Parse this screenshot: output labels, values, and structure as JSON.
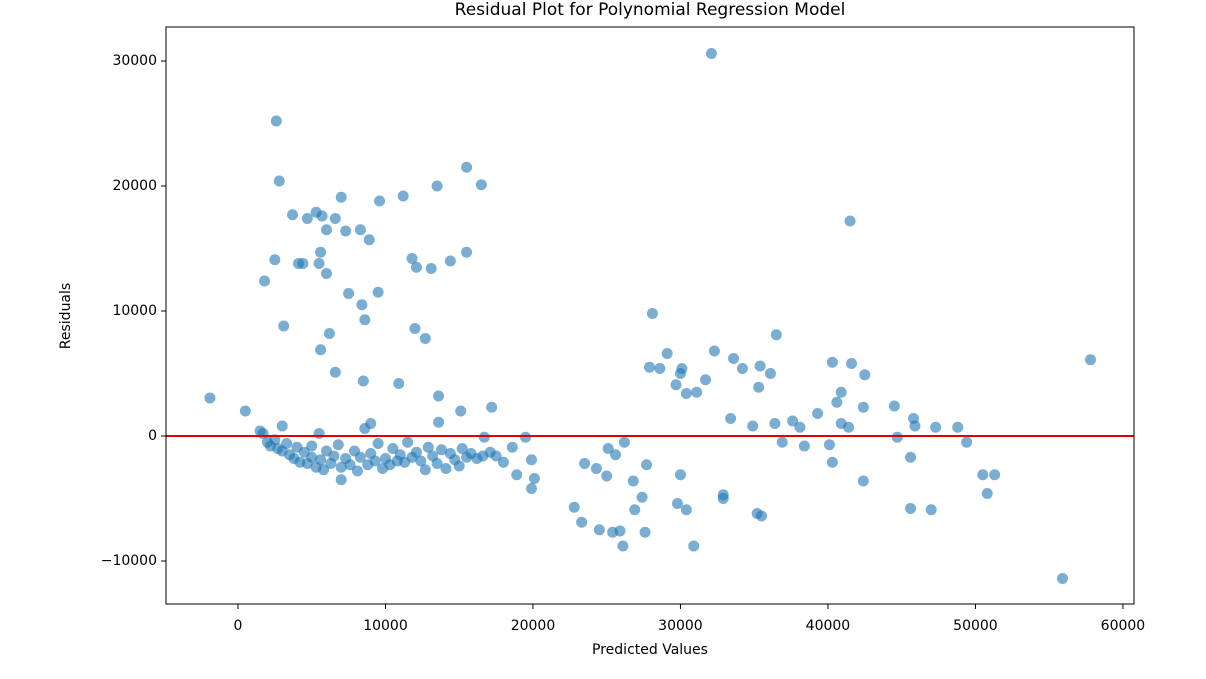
{
  "chart_data": {
    "type": "scatter",
    "title": "Residual Plot for Polynomial Regression Model",
    "x_label": "Predicted Values",
    "y_label": "Residuals",
    "color": "#1f77b4",
    "opacity": 0.6,
    "reference_line": {
      "value": 0,
      "color": "#e00000"
    },
    "xlim": [
      -4880,
      60750
    ],
    "ylim": [
      -13440,
      32720
    ],
    "xticks": [
      0,
      10000,
      20000,
      30000,
      40000,
      50000,
      60000
    ],
    "yticks": [
      {
        "value": -10000,
        "label": "−10000"
      },
      0,
      10000,
      20000,
      30000
    ],
    "x": [
      -1900,
      500,
      2600,
      2800,
      2500,
      1800,
      3100,
      3700,
      4100,
      4400,
      4700,
      5300,
      5700,
      5600,
      5500,
      6000,
      6000,
      5600,
      6200,
      6600,
      7000,
      7300,
      6600,
      7500,
      8300,
      8400,
      8600,
      8900,
      8500,
      9500,
      9600,
      11200,
      10900,
      11800,
      12100,
      12000,
      12700,
      13100,
      13500,
      13600,
      13600,
      14400,
      15500,
      15500,
      15100,
      16500,
      17200,
      16700,
      18600,
      18900,
      19500,
      19900,
      19900,
      20100,
      22800,
      23300,
      23500,
      24300,
      24500,
      25000,
      25100,
      25400,
      25600,
      25900,
      26100,
      26200,
      26800,
      26900,
      27400,
      27600,
      27700,
      27900,
      28100,
      28600,
      29100,
      29700,
      29800,
      30000,
      30100,
      30000,
      30400,
      30400,
      30900,
      31100,
      31700,
      32100,
      32300,
      32900,
      32900,
      33400,
      33600,
      34200,
      34900,
      35200,
      35300,
      35400,
      35500,
      36100,
      36400,
      36500,
      36900,
      37600,
      38100,
      38400,
      39300,
      40100,
      40300,
      40300,
      40600,
      40900,
      40900,
      41400,
      41500,
      41600,
      42500,
      42400,
      42400,
      44500,
      44700,
      45800,
      45600,
      45600,
      45900,
      47000,
      47300,
      48800,
      49400,
      50500,
      50800,
      51300,
      55900,
      57800,
      1500,
      1700,
      2000,
      2200,
      2500,
      2700,
      3000,
      3000,
      3300,
      3500,
      3800,
      4000,
      4200,
      4500,
      4700,
      5000,
      5000,
      5300,
      5500,
      5600,
      5800,
      6000,
      6300,
      6500,
      6800,
      7000,
      7000,
      7300,
      7600,
      7900,
      8100,
      8300,
      8600,
      8800,
      9000,
      9000,
      9300,
      9500,
      9800,
      10000,
      10300,
      10500,
      10800,
      11000,
      11300,
      11500,
      11800,
      12100,
      12400,
      12700,
      12900,
      13200,
      13500,
      13800,
      14100,
      14400,
      14700,
      15000,
      15200,
      15500,
      15800,
      16200,
      16600,
      17100,
      17500,
      18000
    ],
    "values": [
      3040,
      2000,
      25200,
      20400,
      14100,
      12400,
      8800,
      17700,
      13800,
      13800,
      17400,
      17900,
      17600,
      14700,
      13800,
      16500,
      13000,
      6900,
      8200,
      17400,
      19100,
      16400,
      5100,
      11400,
      16500,
      10500,
      9300,
      15700,
      4400,
      11500,
      18800,
      19200,
      4200,
      14200,
      13500,
      8600,
      7800,
      13400,
      20000,
      3200,
      1100,
      14000,
      21500,
      14700,
      2000,
      20100,
      2300,
      -100,
      -900,
      -3100,
      -100,
      -1900,
      -4200,
      -3400,
      -5700,
      -6900,
      -2200,
      -2600,
      -7500,
      -3200,
      -1000,
      -7700,
      -1500,
      -7600,
      -8800,
      -500,
      -3600,
      -5900,
      -4900,
      -7700,
      -2300,
      5500,
      9800,
      5400,
      6600,
      4100,
      -5400,
      5000,
      5400,
      -3100,
      3400,
      -5900,
      -8800,
      3500,
      4500,
      30600,
      6800,
      -4700,
      -5000,
      1400,
      6200,
      5400,
      800,
      -6200,
      3900,
      5600,
      -6400,
      5000,
      1000,
      8100,
      -500,
      1200,
      700,
      -800,
      1800,
      -700,
      5900,
      -2100,
      2700,
      3500,
      1000,
      700,
      17200,
      5800,
      4900,
      2300,
      -3600,
      2400,
      -100,
      1400,
      -1700,
      -5800,
      800,
      -5900,
      700,
      700,
      -500,
      -3100,
      -4600,
      -3100,
      -11400,
      6100,
      400,
      200,
      -500,
      -800,
      -300,
      -1000,
      -1200,
      800,
      -600,
      -1500,
      -1800,
      -900,
      -2100,
      -1300,
      -2200,
      -1700,
      -800,
      -2500,
      200,
      -1900,
      -2700,
      -1200,
      -2200,
      -1600,
      -700,
      -3500,
      -2500,
      -1800,
      -2300,
      -1200,
      -2800,
      -1700,
      600,
      -2300,
      1000,
      -1400,
      -2000,
      -600,
      -2600,
      -1800,
      -2300,
      -1000,
      -2000,
      -1500,
      -2100,
      -500,
      -1700,
      -1300,
      -2000,
      -2700,
      -900,
      -1600,
      -2200,
      -1100,
      -2600,
      -1400,
      -1900,
      -2400,
      -1000,
      -1700,
      -1400,
      -1800,
      -1600,
      -1300,
      -1600,
      -2100
    ]
  }
}
